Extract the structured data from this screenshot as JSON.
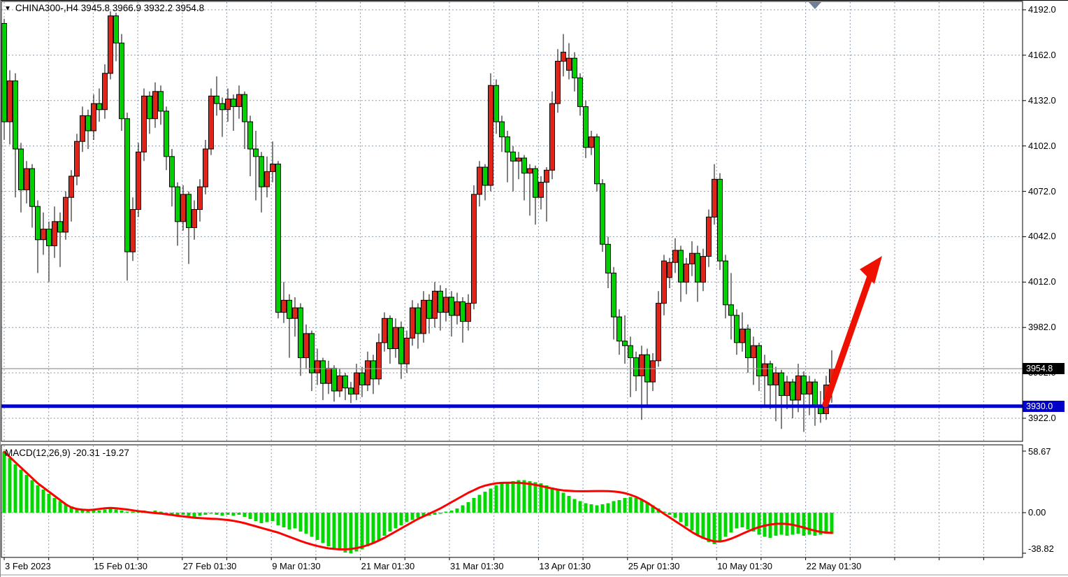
{
  "header": {
    "symbol_timeframe": "CHINA300-,H4",
    "ohlc_values": "3945.8 3966.9 3932.2 3954.8",
    "dropdown_icon": "symbol-dropdown"
  },
  "macd": {
    "label": "MACD(12,26,9)",
    "values": " -20.31 -19.27"
  },
  "price_axis": {
    "tick_labels": [
      "4192.0",
      "4162.0",
      "4132.0",
      "4102.0",
      "4072.0",
      "4042.0",
      "4012.0",
      "3982.0",
      "3952.0",
      "3922.0"
    ],
    "last_price_badge": "3954.8",
    "support_line_badge": "3930.0"
  },
  "macd_axis": {
    "max_label": "58.67",
    "zero_label": "0.00",
    "min_label": "-38.82"
  },
  "time_axis": {
    "labels": [
      "3 Feb 2023",
      "15 Feb 01:30",
      "27 Feb 01:30",
      "9 Mar 01:30",
      "21 Mar 01:30",
      "31 Mar 01:30",
      "13 Apr 01:30",
      "25 Apr 01:30",
      "10 May 01:30",
      "22 May 01:30"
    ]
  },
  "colors": {
    "up_candle": "#df241a",
    "down_candle": "#00d000",
    "wick": "#000000",
    "signal_line": "#ff0000",
    "histogram": "#00d800",
    "support_line": "#0000cd",
    "arrow": "#ee1100",
    "grid": "#8b9aab",
    "current_price_line": "#999999",
    "badge_last": "#000000",
    "badge_support": "#0000c8",
    "shift_marker": "#6e8095"
  },
  "chart_data": [
    {
      "type": "candlestick",
      "symbol": "CHINA300-",
      "timeframe": "H4",
      "title": "CHINA300-,H4 3945.8 3966.9 3932.2 3954.8",
      "last_bar": {
        "open": 3945.8,
        "high": 3966.9,
        "low": 3932.2,
        "close": 3954.8
      },
      "current_price": 3954.8,
      "support_line": 3930.0,
      "y_ticks": [
        4192.0,
        4162.0,
        4132.0,
        4102.0,
        4072.0,
        4042.0,
        4012.0,
        3982.0,
        3952.0,
        3922.0
      ],
      "ylim": [
        3907,
        4197
      ],
      "x_tick_labels": [
        "3 Feb 2023",
        "15 Feb 01:30",
        "27 Feb 01:30",
        "9 Mar 01:30",
        "21 Mar 01:30",
        "31 Mar 01:30",
        "13 Apr 01:30",
        "25 Apr 01:30",
        "10 May 01:30",
        "22 May 01:30"
      ],
      "annotation": "large red up-arrow from support line pointing up-right",
      "color_convention": "red = up candle, green = down candle",
      "candles": [
        [
          4183,
          4186,
          4106,
          4118
        ],
        [
          4118,
          4152,
          4103,
          4145
        ],
        [
          4145,
          4150,
          4068,
          4100
        ],
        [
          4100,
          4104,
          4058,
          4073
        ],
        [
          4073,
          4092,
          4064,
          4087
        ],
        [
          4087,
          4090,
          4048,
          4062
        ],
        [
          4062,
          4066,
          4018,
          4040
        ],
        [
          4040,
          4058,
          4030,
          4047
        ],
        [
          4047,
          4052,
          4012,
          4036
        ],
        [
          4036,
          4062,
          4028,
          4052
        ],
        [
          4052,
          4058,
          4022,
          4045
        ],
        [
          4045,
          4072,
          4040,
          4068
        ],
        [
          4068,
          4086,
          4052,
          4082
        ],
        [
          4082,
          4110,
          4076,
          4105
        ],
        [
          4105,
          4128,
          4098,
          4122
        ],
        [
          4122,
          4126,
          4100,
          4112
        ],
        [
          4112,
          4136,
          4106,
          4130
        ],
        [
          4130,
          4140,
          4118,
          4126
        ],
        [
          4126,
          4156,
          4120,
          4150
        ],
        [
          4150,
          4191,
          4146,
          4188
        ],
        [
          4188,
          4190,
          4158,
          4170
        ],
        [
          4170,
          4176,
          4112,
          4120
        ],
        [
          4120,
          4124,
          4013,
          4032
        ],
        [
          4032,
          4068,
          4026,
          4060
        ],
        [
          4060,
          4104,
          4055,
          4098
        ],
        [
          4098,
          4140,
          4092,
          4135
        ],
        [
          4135,
          4138,
          4110,
          4120
        ],
        [
          4120,
          4144,
          4114,
          4138
        ],
        [
          4138,
          4142,
          4116,
          4125
        ],
        [
          4125,
          4128,
          4086,
          4095
        ],
        [
          4095,
          4100,
          4062,
          4075
        ],
        [
          4075,
          4078,
          4036,
          4052
        ],
        [
          4052,
          4076,
          4046,
          4070
        ],
        [
          4070,
          4072,
          4024,
          4048
        ],
        [
          4048,
          4066,
          4040,
          4060
        ],
        [
          4060,
          4080,
          4052,
          4075
        ],
        [
          4075,
          4106,
          4070,
          4100
        ],
        [
          4100,
          4140,
          4096,
          4135
        ],
        [
          4135,
          4148,
          4122,
          4130
        ],
        [
          4130,
          4134,
          4108,
          4126
        ],
        [
          4126,
          4140,
          4118,
          4133
        ],
        [
          4133,
          4136,
          4112,
          4128
        ],
        [
          4128,
          4142,
          4120,
          4136
        ],
        [
          4136,
          4138,
          4100,
          4118
        ],
        [
          4118,
          4122,
          4082,
          4100
        ],
        [
          4100,
          4112,
          4066,
          4095
        ],
        [
          4095,
          4098,
          4058,
          4075
        ],
        [
          4075,
          4095,
          4068,
          4085
        ],
        [
          4085,
          4105,
          4078,
          4090
        ],
        [
          4090,
          4092,
          3988,
          3992
        ],
        [
          3992,
          4012,
          3985,
          4000
        ],
        [
          4000,
          4004,
          3962,
          3988
        ],
        [
          3988,
          4002,
          3976,
          3995
        ],
        [
          3995,
          3998,
          3950,
          3962
        ],
        [
          3962,
          3984,
          3955,
          3978
        ],
        [
          3978,
          3980,
          3940,
          3952
        ],
        [
          3952,
          3968,
          3944,
          3960
        ],
        [
          3960,
          3962,
          3934,
          3945
        ],
        [
          3945,
          3960,
          3938,
          3955
        ],
        [
          3955,
          3957,
          3933,
          3940
        ],
        [
          3940,
          3955,
          3936,
          3950
        ],
        [
          3950,
          3952,
          3934,
          3942
        ],
        [
          3942,
          3946,
          3932,
          3938
        ],
        [
          3938,
          3958,
          3934,
          3952
        ],
        [
          3952,
          3956,
          3936,
          3944
        ],
        [
          3944,
          3966,
          3940,
          3960
        ],
        [
          3960,
          3964,
          3938,
          3948
        ],
        [
          3948,
          3978,
          3944,
          3972
        ],
        [
          3972,
          3992,
          3966,
          3988
        ],
        [
          3988,
          3990,
          3958,
          3968
        ],
        [
          3968,
          3988,
          3962,
          3982
        ],
        [
          3982,
          3986,
          3948,
          3958
        ],
        [
          3958,
          3980,
          3952,
          3975
        ],
        [
          3975,
          4000,
          3970,
          3995
        ],
        [
          3995,
          3998,
          3968,
          3978
        ],
        [
          3978,
          4006,
          3972,
          4000
        ],
        [
          4000,
          4004,
          3978,
          3988
        ],
        [
          3988,
          4012,
          3982,
          4006
        ],
        [
          4006,
          4010,
          3980,
          3992
        ],
        [
          3992,
          4008,
          3986,
          4002
        ],
        [
          4002,
          4006,
          3976,
          3990
        ],
        [
          3990,
          4005,
          3984,
          3999
        ],
        [
          3999,
          4002,
          3972,
          3986
        ],
        [
          3986,
          4004,
          3980,
          3998
        ],
        [
          3998,
          4076,
          3994,
          4070
        ],
        [
          4070,
          4092,
          4062,
          4088
        ],
        [
          4088,
          4090,
          4066,
          4076
        ],
        [
          4076,
          4150,
          4072,
          4142
        ],
        [
          4142,
          4146,
          4110,
          4118
        ],
        [
          4118,
          4122,
          4098,
          4108
        ],
        [
          4108,
          4112,
          4078,
          4098
        ],
        [
          4098,
          4102,
          4072,
          4092
        ],
        [
          4092,
          4098,
          4080,
          4094
        ],
        [
          4094,
          4096,
          4066,
          4084
        ],
        [
          4084,
          4090,
          4056,
          4087
        ],
        [
          4087,
          4089,
          4050,
          4068
        ],
        [
          4068,
          4082,
          4060,
          4078
        ],
        [
          4078,
          4088,
          4052,
          4086
        ],
        [
          4086,
          4138,
          4080,
          4130
        ],
        [
          4130,
          4166,
          4124,
          4158
        ],
        [
          4158,
          4176,
          4148,
          4164
        ],
        [
          4152,
          4170,
          4146,
          4160
        ],
        [
          4160,
          4164,
          4138,
          4147
        ],
        [
          4147,
          4150,
          4122,
          4128
        ],
        [
          4128,
          4132,
          4094,
          4101
        ],
        [
          4101,
          4112,
          4096,
          4108
        ],
        [
          4108,
          4110,
          4072,
          4077
        ],
        [
          4077,
          4080,
          4032,
          4037
        ],
        [
          4037,
          4042,
          4008,
          4018
        ],
        [
          4018,
          4022,
          3974,
          3989
        ],
        [
          3989,
          3994,
          3964,
          3973
        ],
        [
          3973,
          3990,
          3958,
          3970
        ],
        [
          3970,
          3976,
          3936,
          3962
        ],
        [
          3962,
          3966,
          3940,
          3950
        ],
        [
          3950,
          3970,
          3921,
          3964
        ],
        [
          3964,
          3968,
          3930,
          3946
        ],
        [
          3946,
          3965,
          3940,
          3960
        ],
        [
          3960,
          4006,
          3956,
          3998
        ],
        [
          3998,
          4030,
          3990,
          4026
        ],
        [
          4015,
          4028,
          4008,
          4025
        ],
        [
          4025,
          4041,
          4018,
          4033
        ],
        [
          4033,
          4036,
          3999,
          4012
        ],
        [
          4012,
          4028,
          4004,
          4024
        ],
        [
          4024,
          4039,
          4016,
          4031
        ],
        [
          4031,
          4036,
          3999,
          4012
        ],
        [
          4012,
          4034,
          4006,
          4029
        ],
        [
          4029,
          4060,
          4022,
          4055
        ],
        [
          4055,
          4090,
          4050,
          4080
        ],
        [
          4080,
          4084,
          4020,
          4026
        ],
        [
          4026,
          4030,
          3988,
          3997
        ],
        [
          3997,
          4018,
          3974,
          3990
        ],
        [
          3990,
          3994,
          3964,
          3972
        ],
        [
          3972,
          3992,
          3966,
          3981
        ],
        [
          3981,
          3984,
          3952,
          3962
        ],
        [
          3962,
          3976,
          3944,
          3970
        ],
        [
          3970,
          3972,
          3940,
          3950
        ],
        [
          3950,
          3964,
          3930,
          3958
        ],
        [
          3958,
          3960,
          3928,
          3944
        ],
        [
          3944,
          3956,
          3920,
          3952
        ],
        [
          3952,
          3954,
          3915,
          3937
        ],
        [
          3937,
          3950,
          3928,
          3946
        ],
        [
          3946,
          3948,
          3922,
          3934
        ],
        [
          3934,
          3958,
          3926,
          3950
        ],
        [
          3950,
          3953,
          3913,
          3938
        ],
        [
          3938,
          3950,
          3924,
          3946
        ],
        [
          3946,
          3948,
          3917,
          3930
        ],
        [
          3930,
          3940,
          3919,
          3925
        ],
        [
          3925,
          3950,
          3921,
          3944
        ],
        [
          3945.8,
          3966.9,
          3932.2,
          3954.8
        ]
      ]
    },
    {
      "type": "macd",
      "params": [
        12,
        26,
        9
      ],
      "values": {
        "macd": -20.31,
        "signal": -19.27
      },
      "y_ticks": [
        58.67,
        0.0,
        -38.82
      ],
      "ylim": [
        -38.82,
        58.67
      ],
      "histogram": [
        58,
        52,
        46,
        41,
        36,
        31,
        26,
        22,
        18,
        14,
        11,
        8,
        6,
        4,
        3,
        2,
        3,
        2,
        3,
        4,
        3,
        2,
        1,
        1,
        2,
        2,
        1,
        2,
        1,
        -1,
        -2,
        -3,
        -2,
        -3,
        -4,
        -3,
        -2,
        -1,
        -2,
        -3,
        -2,
        -3,
        -2,
        -4,
        -6,
        -8,
        -10,
        -9,
        -8,
        -12,
        -14,
        -16,
        -15,
        -18,
        -20,
        -23,
        -26,
        -29,
        -32,
        -34,
        -36,
        -38,
        -38.8,
        -37,
        -35,
        -32,
        -29,
        -26,
        -22,
        -18,
        -15,
        -12,
        -9,
        -7,
        -5,
        -4,
        -3,
        -2,
        -1,
        1,
        2,
        4,
        7,
        10,
        14,
        17,
        20,
        23,
        26,
        28,
        29,
        30,
        31,
        31,
        30,
        29,
        28,
        26,
        24,
        22,
        19,
        16,
        13,
        11,
        9,
        8,
        7,
        8,
        9,
        11,
        12,
        14,
        15,
        14,
        12,
        10,
        7,
        4,
        1,
        -2,
        -5,
        -9,
        -13,
        -17,
        -21,
        -25,
        -28,
        -30,
        -27,
        -23,
        -19,
        -15,
        -14,
        -16,
        -18,
        -21,
        -23,
        -24,
        -22,
        -21,
        -22,
        -21,
        -20,
        -22,
        -21,
        -22,
        -21,
        -20,
        -20.31
      ],
      "signal_line": [
        58,
        53,
        48,
        43,
        38,
        33,
        28,
        24,
        20,
        16,
        12,
        8,
        5,
        3.5,
        2.8,
        2.5,
        2.8,
        3.5,
        4.2,
        4.5,
        4.2,
        3.6,
        3,
        2.2,
        1.5,
        0.8,
        0.2,
        -0.3,
        -0.8,
        -1.5,
        -2.2,
        -3,
        -3.6,
        -4.2,
        -4.8,
        -5.2,
        -5.5,
        -5.8,
        -6,
        -6.5,
        -7,
        -7.8,
        -8.8,
        -10,
        -11.5,
        -13,
        -14.5,
        -16,
        -17.5,
        -19,
        -21,
        -23,
        -25,
        -27,
        -28.8,
        -30.4,
        -31.8,
        -33,
        -34,
        -34.6,
        -35,
        -35,
        -34.6,
        -33.8,
        -32.6,
        -31,
        -29,
        -26.6,
        -24,
        -21,
        -18,
        -15,
        -12,
        -9,
        -6,
        -3.5,
        -1,
        1.5,
        4,
        7,
        10,
        13,
        16,
        19,
        21.5,
        24,
        25.8,
        27,
        28,
        28.4,
        28.5,
        28.5,
        28.4,
        28,
        27.4,
        26.5,
        25.4,
        24.2,
        23,
        22,
        21.2,
        20.8,
        20.5,
        20.4,
        20.4,
        20.5,
        20.6,
        20.6,
        20.5,
        20.2,
        19.6,
        18.6,
        17,
        15,
        12.5,
        9.5,
        6,
        2.5,
        -1,
        -4.5,
        -8,
        -11.5,
        -15,
        -18.5,
        -21.5,
        -24,
        -26,
        -27.3,
        -27.5,
        -26.5,
        -24.8,
        -22.6,
        -20.2,
        -17.8,
        -15.6,
        -13.8,
        -12.4,
        -11.3,
        -10.7,
        -10.5,
        -10.8,
        -11.6,
        -12.8,
        -14.2,
        -15.8,
        -17.2,
        -18.3,
        -19,
        -19.27
      ]
    }
  ]
}
